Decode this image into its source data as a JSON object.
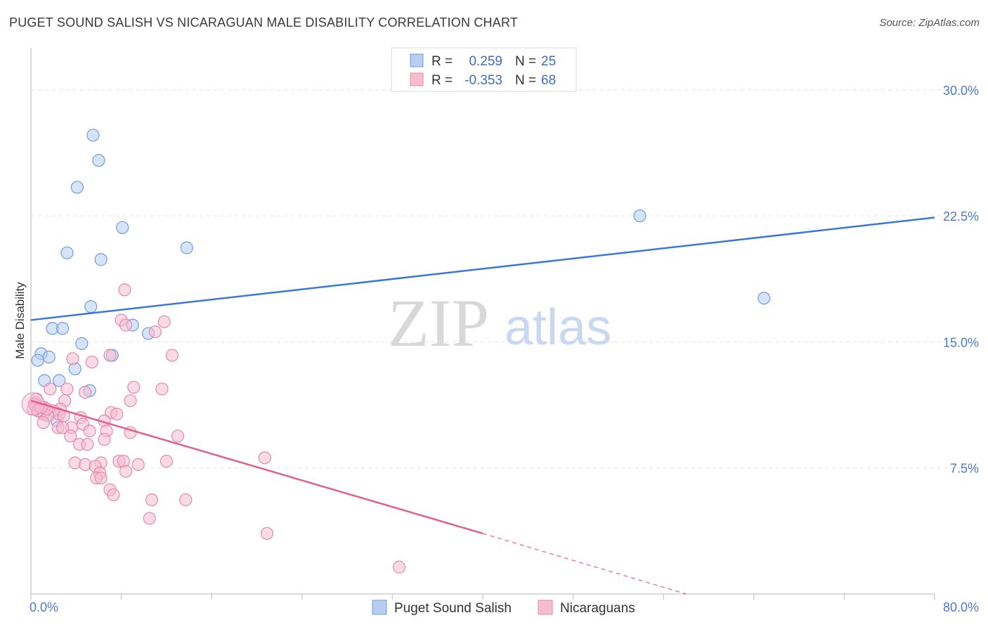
{
  "title": "PUGET SOUND SALISH VS NICARAGUAN MALE DISABILITY CORRELATION CHART",
  "source": "Source: ZipAtlas.com",
  "watermark": {
    "zip": "ZIP",
    "atlas": "atlas"
  },
  "colors": {
    "blue": "#3a78d4",
    "blue_fill": "#b7cef0",
    "pink": "#e0608e",
    "pink_fill": "#f6bcd0",
    "grid": "#e2e2e2",
    "axis": "#cfcfcf"
  },
  "legend": {
    "rows": [
      {
        "r_label": "R =",
        "r_value": "0.259",
        "n_label": "N =",
        "n_value": "25"
      },
      {
        "r_label": "R =",
        "r_value": "-0.353",
        "n_label": "N =",
        "n_value": "68"
      }
    ]
  },
  "chart_data": {
    "type": "scatter",
    "ylabel": "Male Disability",
    "xlim": [
      0,
      80
    ],
    "ylim": [
      0,
      32.5
    ],
    "x_tick_labels": [
      {
        "value": 0,
        "label": "0.0%"
      },
      {
        "value": 80,
        "label": "80.0%"
      }
    ],
    "y_tick_labels": [
      {
        "value": 7.5,
        "label": "7.5%"
      },
      {
        "value": 15.0,
        "label": "15.0%"
      },
      {
        "value": 22.5,
        "label": "22.5%"
      },
      {
        "value": 30.0,
        "label": "30.0%"
      }
    ],
    "y_gridlines": [
      7.5,
      15.0,
      22.5,
      30.0
    ],
    "legend_placement": "top-center",
    "series": [
      {
        "name": "Puget Sound Salish",
        "color": "blue",
        "points": [
          [
            5.5,
            27.3
          ],
          [
            6.0,
            25.8
          ],
          [
            4.1,
            24.2
          ],
          [
            8.1,
            21.8
          ],
          [
            13.8,
            20.6
          ],
          [
            3.2,
            20.3
          ],
          [
            6.2,
            19.9
          ],
          [
            53.9,
            22.5
          ],
          [
            64.9,
            17.6
          ],
          [
            5.3,
            17.1
          ],
          [
            9.0,
            16.0
          ],
          [
            1.9,
            15.8
          ],
          [
            2.8,
            15.8
          ],
          [
            10.4,
            15.5
          ],
          [
            4.5,
            14.9
          ],
          [
            0.9,
            14.3
          ],
          [
            1.6,
            14.1
          ],
          [
            7.2,
            14.2
          ],
          [
            0.6,
            13.9
          ],
          [
            3.9,
            13.4
          ],
          [
            1.2,
            12.7
          ],
          [
            2.5,
            12.7
          ],
          [
            5.2,
            12.1
          ],
          [
            0.4,
            11.4
          ],
          [
            2.3,
            10.3
          ]
        ],
        "trend": {
          "x0": 0,
          "y0": 16.3,
          "x1": 80,
          "y1": 22.4,
          "dashed_from": null
        }
      },
      {
        "name": "Nicaraguans",
        "color": "pink",
        "points": [
          [
            8.3,
            18.1
          ],
          [
            11.8,
            16.2
          ],
          [
            8.0,
            16.3
          ],
          [
            8.4,
            16.0
          ],
          [
            11.0,
            15.6
          ],
          [
            7.0,
            14.2
          ],
          [
            12.5,
            14.2
          ],
          [
            3.7,
            14.0
          ],
          [
            5.4,
            13.8
          ],
          [
            9.1,
            12.3
          ],
          [
            11.6,
            12.2
          ],
          [
            3.2,
            12.2
          ],
          [
            4.8,
            12.0
          ],
          [
            1.7,
            12.2
          ],
          [
            0.4,
            11.2
          ],
          [
            3.0,
            11.5
          ],
          [
            8.8,
            11.5
          ],
          [
            1.2,
            11.1
          ],
          [
            2.6,
            11.0
          ],
          [
            0.8,
            10.9
          ],
          [
            2.0,
            10.9
          ],
          [
            1.1,
            10.7
          ],
          [
            2.5,
            10.7
          ],
          [
            4.4,
            10.5
          ],
          [
            7.1,
            10.8
          ],
          [
            7.6,
            10.7
          ],
          [
            0.2,
            11.0
          ],
          [
            1.5,
            10.6
          ],
          [
            1.1,
            10.2
          ],
          [
            6.5,
            10.3
          ],
          [
            4.6,
            10.1
          ],
          [
            2.4,
            9.9
          ],
          [
            3.6,
            9.9
          ],
          [
            2.8,
            9.9
          ],
          [
            6.7,
            9.7
          ],
          [
            5.2,
            9.7
          ],
          [
            8.8,
            9.6
          ],
          [
            3.5,
            9.4
          ],
          [
            13.0,
            9.4
          ],
          [
            6.5,
            9.2
          ],
          [
            4.3,
            8.9
          ],
          [
            5.0,
            8.9
          ],
          [
            20.7,
            8.1
          ],
          [
            7.8,
            7.9
          ],
          [
            8.2,
            7.9
          ],
          [
            12.0,
            7.9
          ],
          [
            3.9,
            7.8
          ],
          [
            6.2,
            7.8
          ],
          [
            9.5,
            7.7
          ],
          [
            4.8,
            7.7
          ],
          [
            5.7,
            7.6
          ],
          [
            8.4,
            7.3
          ],
          [
            6.1,
            7.2
          ],
          [
            5.8,
            6.9
          ],
          [
            6.2,
            6.9
          ],
          [
            7.0,
            6.2
          ],
          [
            7.3,
            5.9
          ],
          [
            10.7,
            5.6
          ],
          [
            13.7,
            5.6
          ],
          [
            10.5,
            4.5
          ],
          [
            20.9,
            3.6
          ],
          [
            32.6,
            1.6
          ],
          [
            0.5,
            11.6
          ],
          [
            0.3,
            11.3
          ],
          [
            0.6,
            10.9
          ],
          [
            1.4,
            11.0
          ],
          [
            2.9,
            10.6
          ],
          [
            0.9,
            11.1
          ]
        ],
        "trend": {
          "x0": 0,
          "y0": 11.5,
          "x1": 40,
          "y1": 3.6,
          "solid_until_x": 40,
          "dash_x1": 58,
          "dash_y1": 0
        }
      }
    ]
  }
}
